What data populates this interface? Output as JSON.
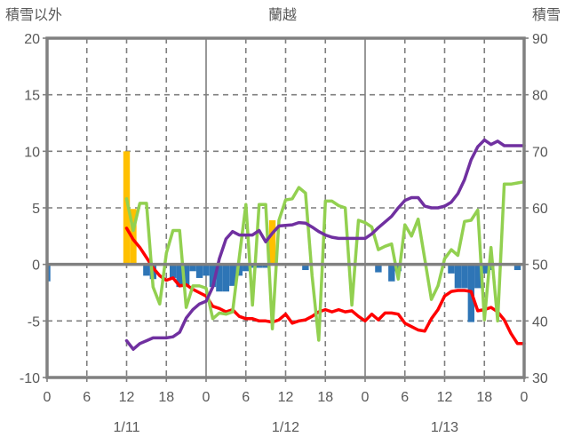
{
  "chart_data": {
    "type": "combo bar+line, dual y-axis",
    "title": "蘭越",
    "left_axis": {
      "label": "積雪以外",
      "min": -10,
      "max": 20,
      "ticks": [
        "20",
        "15",
        "10",
        "5",
        "0",
        "-5",
        "-10"
      ],
      "tick_values": [
        20,
        15,
        10,
        5,
        0,
        -5,
        -10
      ]
    },
    "right_axis": {
      "label": "積雪",
      "min": 30,
      "max": 90,
      "ticks": [
        "90",
        "80",
        "70",
        "60",
        "50",
        "40",
        "30"
      ],
      "tick_values": [
        90,
        80,
        70,
        60,
        50,
        40,
        30
      ]
    },
    "x_axis": {
      "total_hours": 72,
      "tick_interval": 6,
      "hour_tick_labels": [
        "0",
        "6",
        "12",
        "18",
        "0",
        "6",
        "12",
        "18",
        "0",
        "6",
        "12",
        "18",
        "0"
      ],
      "day_labels": [
        "1/11",
        "1/12",
        "1/13"
      ],
      "day_label_center_hours": [
        12,
        36,
        60
      ],
      "day_boundary_hours": [
        24,
        48
      ]
    },
    "grid": {
      "h_dashed_left_values": [
        15,
        10,
        5,
        -5
      ],
      "zero_line_left_value": 0,
      "border_color": "#808080",
      "grid_color": "#7F7F7F",
      "label_color": "#595959"
    },
    "series": [
      {
        "id": "snowfall-orange-bars",
        "type": "bar",
        "axis": "left",
        "color": "#FFC000",
        "points": [
          [
            12,
            10
          ],
          [
            13,
            4.9
          ],
          [
            34,
            3.9
          ]
        ]
      },
      {
        "id": "snow-blue-bars",
        "type": "bar",
        "axis": "left",
        "color": "#2E75B6",
        "points": [
          [
            0,
            -1.5
          ],
          [
            15,
            -1.0
          ],
          [
            16,
            -1.3
          ],
          [
            19,
            -1.2
          ],
          [
            20,
            -2.0
          ],
          [
            21,
            -1.9
          ],
          [
            22,
            -0.6
          ],
          [
            23,
            -1.2
          ],
          [
            24,
            -1.0
          ],
          [
            25,
            -2.0
          ],
          [
            26,
            -2.4
          ],
          [
            27,
            -2.4
          ],
          [
            28,
            -1.9
          ],
          [
            29,
            -1.0
          ],
          [
            30,
            -0.6
          ],
          [
            31,
            -0.3
          ],
          [
            32,
            -0.3
          ],
          [
            33,
            -0.3
          ],
          [
            39,
            -0.5
          ],
          [
            50,
            -0.7
          ],
          [
            52,
            -1.5
          ],
          [
            53,
            -0.6
          ],
          [
            61,
            -0.8
          ],
          [
            62,
            -2.1
          ],
          [
            63,
            -2.1
          ],
          [
            64,
            -5.1
          ],
          [
            65,
            -2.1
          ],
          [
            66,
            -0.8
          ],
          [
            67,
            -0.5
          ],
          [
            71,
            -0.5
          ]
        ]
      },
      {
        "id": "red-line",
        "type": "line",
        "axis": "left",
        "color": "#FF0000",
        "start_hour": 12,
        "values": [
          3.2,
          2.2,
          1.5,
          0.6,
          -0.3,
          -1.0,
          -1.4,
          -1.2,
          -1.9,
          -1.8,
          -2.2,
          -2.5,
          -2.8,
          -3.7,
          -3.9,
          -4.2,
          -4.0,
          -4.6,
          -4.8,
          -4.8,
          -5.0,
          -5.0,
          -5.1,
          -4.9,
          -4.4,
          -5.2,
          -5.0,
          -4.9,
          -4.6,
          -4.2,
          -4.0,
          -4.2,
          -4.0,
          -4.2,
          -4.1,
          -4.6,
          -5.0,
          -4.4,
          -4.9,
          -4.3,
          -4.3,
          -4.4,
          -5.2,
          -5.5,
          -5.8,
          -5.9,
          -4.8,
          -4.0,
          -2.8,
          -2.4,
          -2.3,
          -2.3,
          -2.4,
          -4.1,
          -4.0,
          -3.8,
          -4.2,
          -4.9,
          -6.1,
          -7.0,
          -7.0
        ]
      },
      {
        "id": "green-line",
        "type": "line",
        "axis": "left",
        "color": "#92D050",
        "start_hour": 12,
        "values": [
          5.8,
          3.0,
          5.4,
          5.4,
          -2.0,
          -3.5,
          1.0,
          3.0,
          3.0,
          -3.8,
          -1.9,
          -1.9,
          -2.1,
          -4.8,
          -4.3,
          -4.4,
          -4.2,
          0.6,
          5.3,
          -3.6,
          5.3,
          5.3,
          -5.7,
          3.9,
          5.7,
          5.8,
          6.8,
          6.3,
          -1.0,
          -6.7,
          5.6,
          5.6,
          5.2,
          5.0,
          -3.6,
          3.9,
          3.7,
          3.3,
          1.3,
          1.6,
          1.8,
          -1.3,
          3.5,
          2.5,
          4.0,
          0.5,
          -3.1,
          -1.9,
          0.5,
          1.3,
          0.8,
          3.8,
          3.9,
          4.8,
          -4.9,
          1.5,
          -5.0,
          7.1,
          7.1,
          7.2,
          7.3
        ]
      },
      {
        "id": "purple-line",
        "type": "line",
        "axis": "right",
        "color": "#7030A0",
        "start_hour": 12,
        "values": [
          36.5,
          35,
          36,
          36.5,
          37,
          37,
          37,
          37.2,
          38,
          40.5,
          42,
          43,
          43.5,
          46,
          51,
          54.5,
          55.8,
          55.2,
          55.2,
          55.2,
          56,
          54,
          55.5,
          56.8,
          56.9,
          57,
          57.4,
          57.3,
          56.6,
          55.8,
          55.2,
          54.8,
          54.6,
          54.6,
          54.6,
          54.6,
          54.6,
          55.4,
          56.5,
          57.5,
          58.5,
          60,
          61.3,
          61.8,
          61.8,
          60.3,
          60,
          60,
          60.3,
          61,
          62.5,
          65,
          68.5,
          70.8,
          72,
          71.2,
          71.8,
          71,
          71,
          71,
          71
        ]
      }
    ]
  }
}
